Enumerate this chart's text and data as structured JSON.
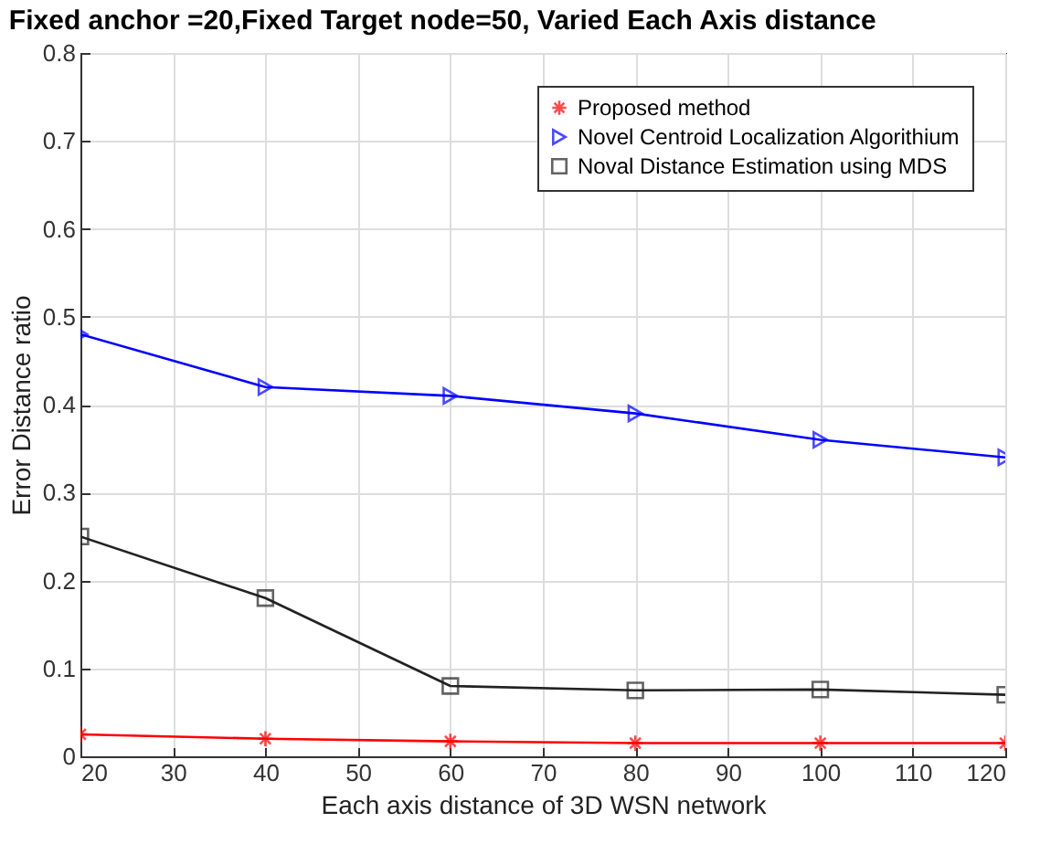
{
  "chart_data": {
    "type": "line",
    "title": "Fixed  anchor =20,Fixed Target node=50, Varied Each Axis distance",
    "xlabel": "Each axis distance of 3D  WSN network",
    "ylabel": "Error Distance ratio",
    "x": [
      20,
      40,
      60,
      80,
      100,
      120
    ],
    "series": [
      {
        "name": "Proposed method",
        "color": "#ff0000",
        "marker": "cross",
        "values": [
          0.025,
          0.02,
          0.017,
          0.015,
          0.015,
          0.015
        ]
      },
      {
        "name": "Novel Centroid Localization Algorithium",
        "color": "#0000ff",
        "marker": "triangle",
        "values": [
          0.48,
          0.42,
          0.41,
          0.39,
          0.36,
          0.34
        ]
      },
      {
        "name": "Noval Distance Estimation using MDS",
        "color": "#222222",
        "marker": "square",
        "values": [
          0.25,
          0.18,
          0.08,
          0.075,
          0.076,
          0.07
        ]
      }
    ],
    "xlim": [
      20,
      120
    ],
    "xticks": [
      20,
      30,
      40,
      50,
      60,
      70,
      80,
      90,
      100,
      110,
      120
    ],
    "ylim": [
      0,
      0.8
    ],
    "yticks": [
      0,
      0.1,
      0.2,
      0.3,
      0.4,
      0.5,
      0.6,
      0.7,
      0.8
    ],
    "grid": true,
    "legend": "top right",
    "line_style": "solid"
  }
}
